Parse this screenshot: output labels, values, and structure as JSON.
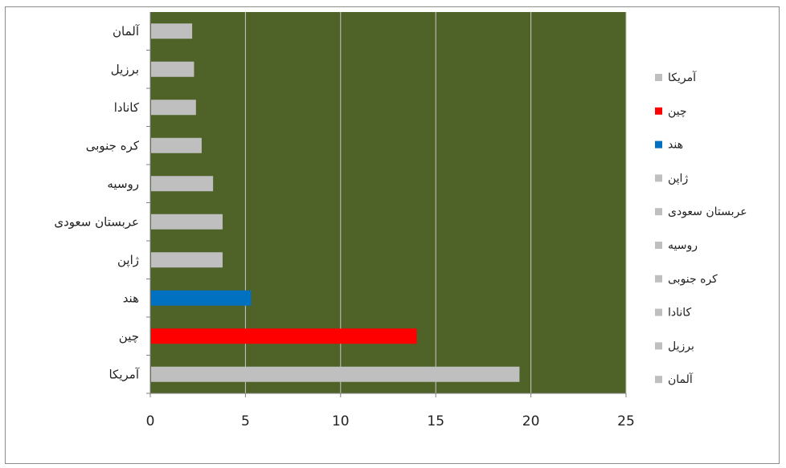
{
  "chart_data": {
    "type": "bar",
    "orientation": "horizontal",
    "plot_background": "#4f6228",
    "grid": "vertical-lines",
    "legend_position": "right",
    "xlim": [
      0,
      25
    ],
    "x_ticks": [
      "0",
      "5",
      "10",
      "15",
      "20",
      "25"
    ],
    "categories": [
      "آمریکا",
      "چین",
      "هند",
      "ژاپن",
      "عربستان سعودی",
      "روسیه",
      "کره جنوبی",
      "کانادا",
      "برزیل",
      "آلمان"
    ],
    "values": [
      19.4,
      14.0,
      5.3,
      3.8,
      3.8,
      3.3,
      2.7,
      2.4,
      2.3,
      2.2
    ],
    "colors": [
      "#bfbfbf",
      "#ff0000",
      "#0070c0",
      "#bfbfbf",
      "#bfbfbf",
      "#bfbfbf",
      "#bfbfbf",
      "#bfbfbf",
      "#bfbfbf",
      "#bfbfbf"
    ],
    "legend": [
      "آمریکا",
      "چین",
      "هند",
      "ژاپن",
      "عربستان سعودی",
      "روسیه",
      "کره جنوبی",
      "کانادا",
      "برزیل",
      "آلمان"
    ]
  }
}
